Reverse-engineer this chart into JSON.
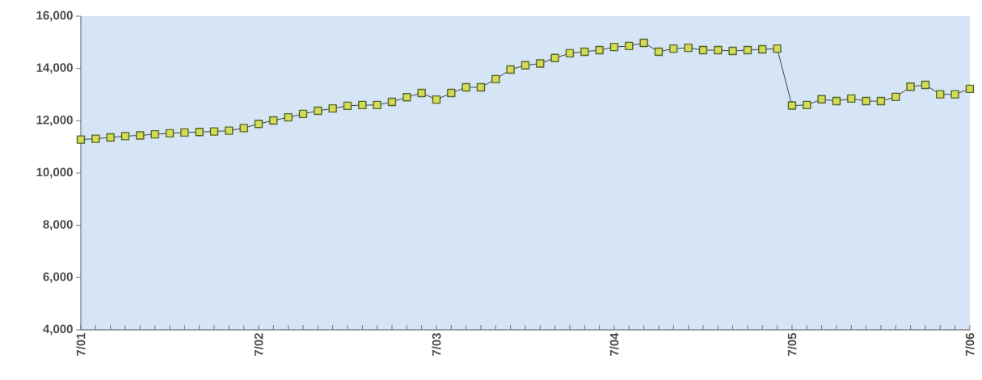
{
  "chart_data": {
    "type": "line",
    "marker": "square",
    "line_style": "solid",
    "grid": false,
    "legend": false,
    "categories": [
      "7/01",
      null,
      null,
      null,
      null,
      null,
      null,
      null,
      null,
      null,
      null,
      null,
      "7/02",
      null,
      null,
      null,
      null,
      null,
      null,
      null,
      null,
      null,
      null,
      null,
      "7/03",
      null,
      null,
      null,
      null,
      null,
      null,
      null,
      null,
      null,
      null,
      null,
      "7/04",
      null,
      null,
      null,
      null,
      null,
      null,
      null,
      null,
      null,
      null,
      null,
      "7/05",
      null,
      null,
      null,
      null,
      null,
      null,
      null,
      null,
      null,
      null,
      null,
      "7/06"
    ],
    "series": [
      {
        "color": "#55662a",
        "values": [
          11280,
          11310,
          11360,
          11410,
          11440,
          11480,
          11520,
          11550,
          11570,
          11590,
          11620,
          11720,
          11880,
          12010,
          12130,
          12260,
          12380,
          12470,
          12570,
          12600,
          12600,
          12720,
          12900,
          13060,
          12810,
          13060,
          13280,
          13280,
          13590,
          13960,
          14120,
          14190,
          14400,
          14580,
          14640,
          14700,
          14820,
          14860,
          14980,
          14640,
          14760,
          14790,
          14700,
          14700,
          14670,
          14700,
          14730,
          14760,
          12580,
          12600,
          12820,
          12750,
          12850,
          12750,
          12750,
          12910,
          13300,
          13370,
          13010,
          13010,
          13220
        ]
      }
    ],
    "ylim": [
      4000,
      16000
    ],
    "yticks": [
      {
        "value": 4000,
        "label": "4,000"
      },
      {
        "value": 6000,
        "label": "6,000"
      },
      {
        "value": 8000,
        "label": "8,000"
      },
      {
        "value": 10000,
        "label": "10,000"
      },
      {
        "value": 12000,
        "label": "12,000"
      },
      {
        "value": 14000,
        "label": "14,000"
      },
      {
        "value": 16000,
        "label": "16,000"
      }
    ]
  }
}
